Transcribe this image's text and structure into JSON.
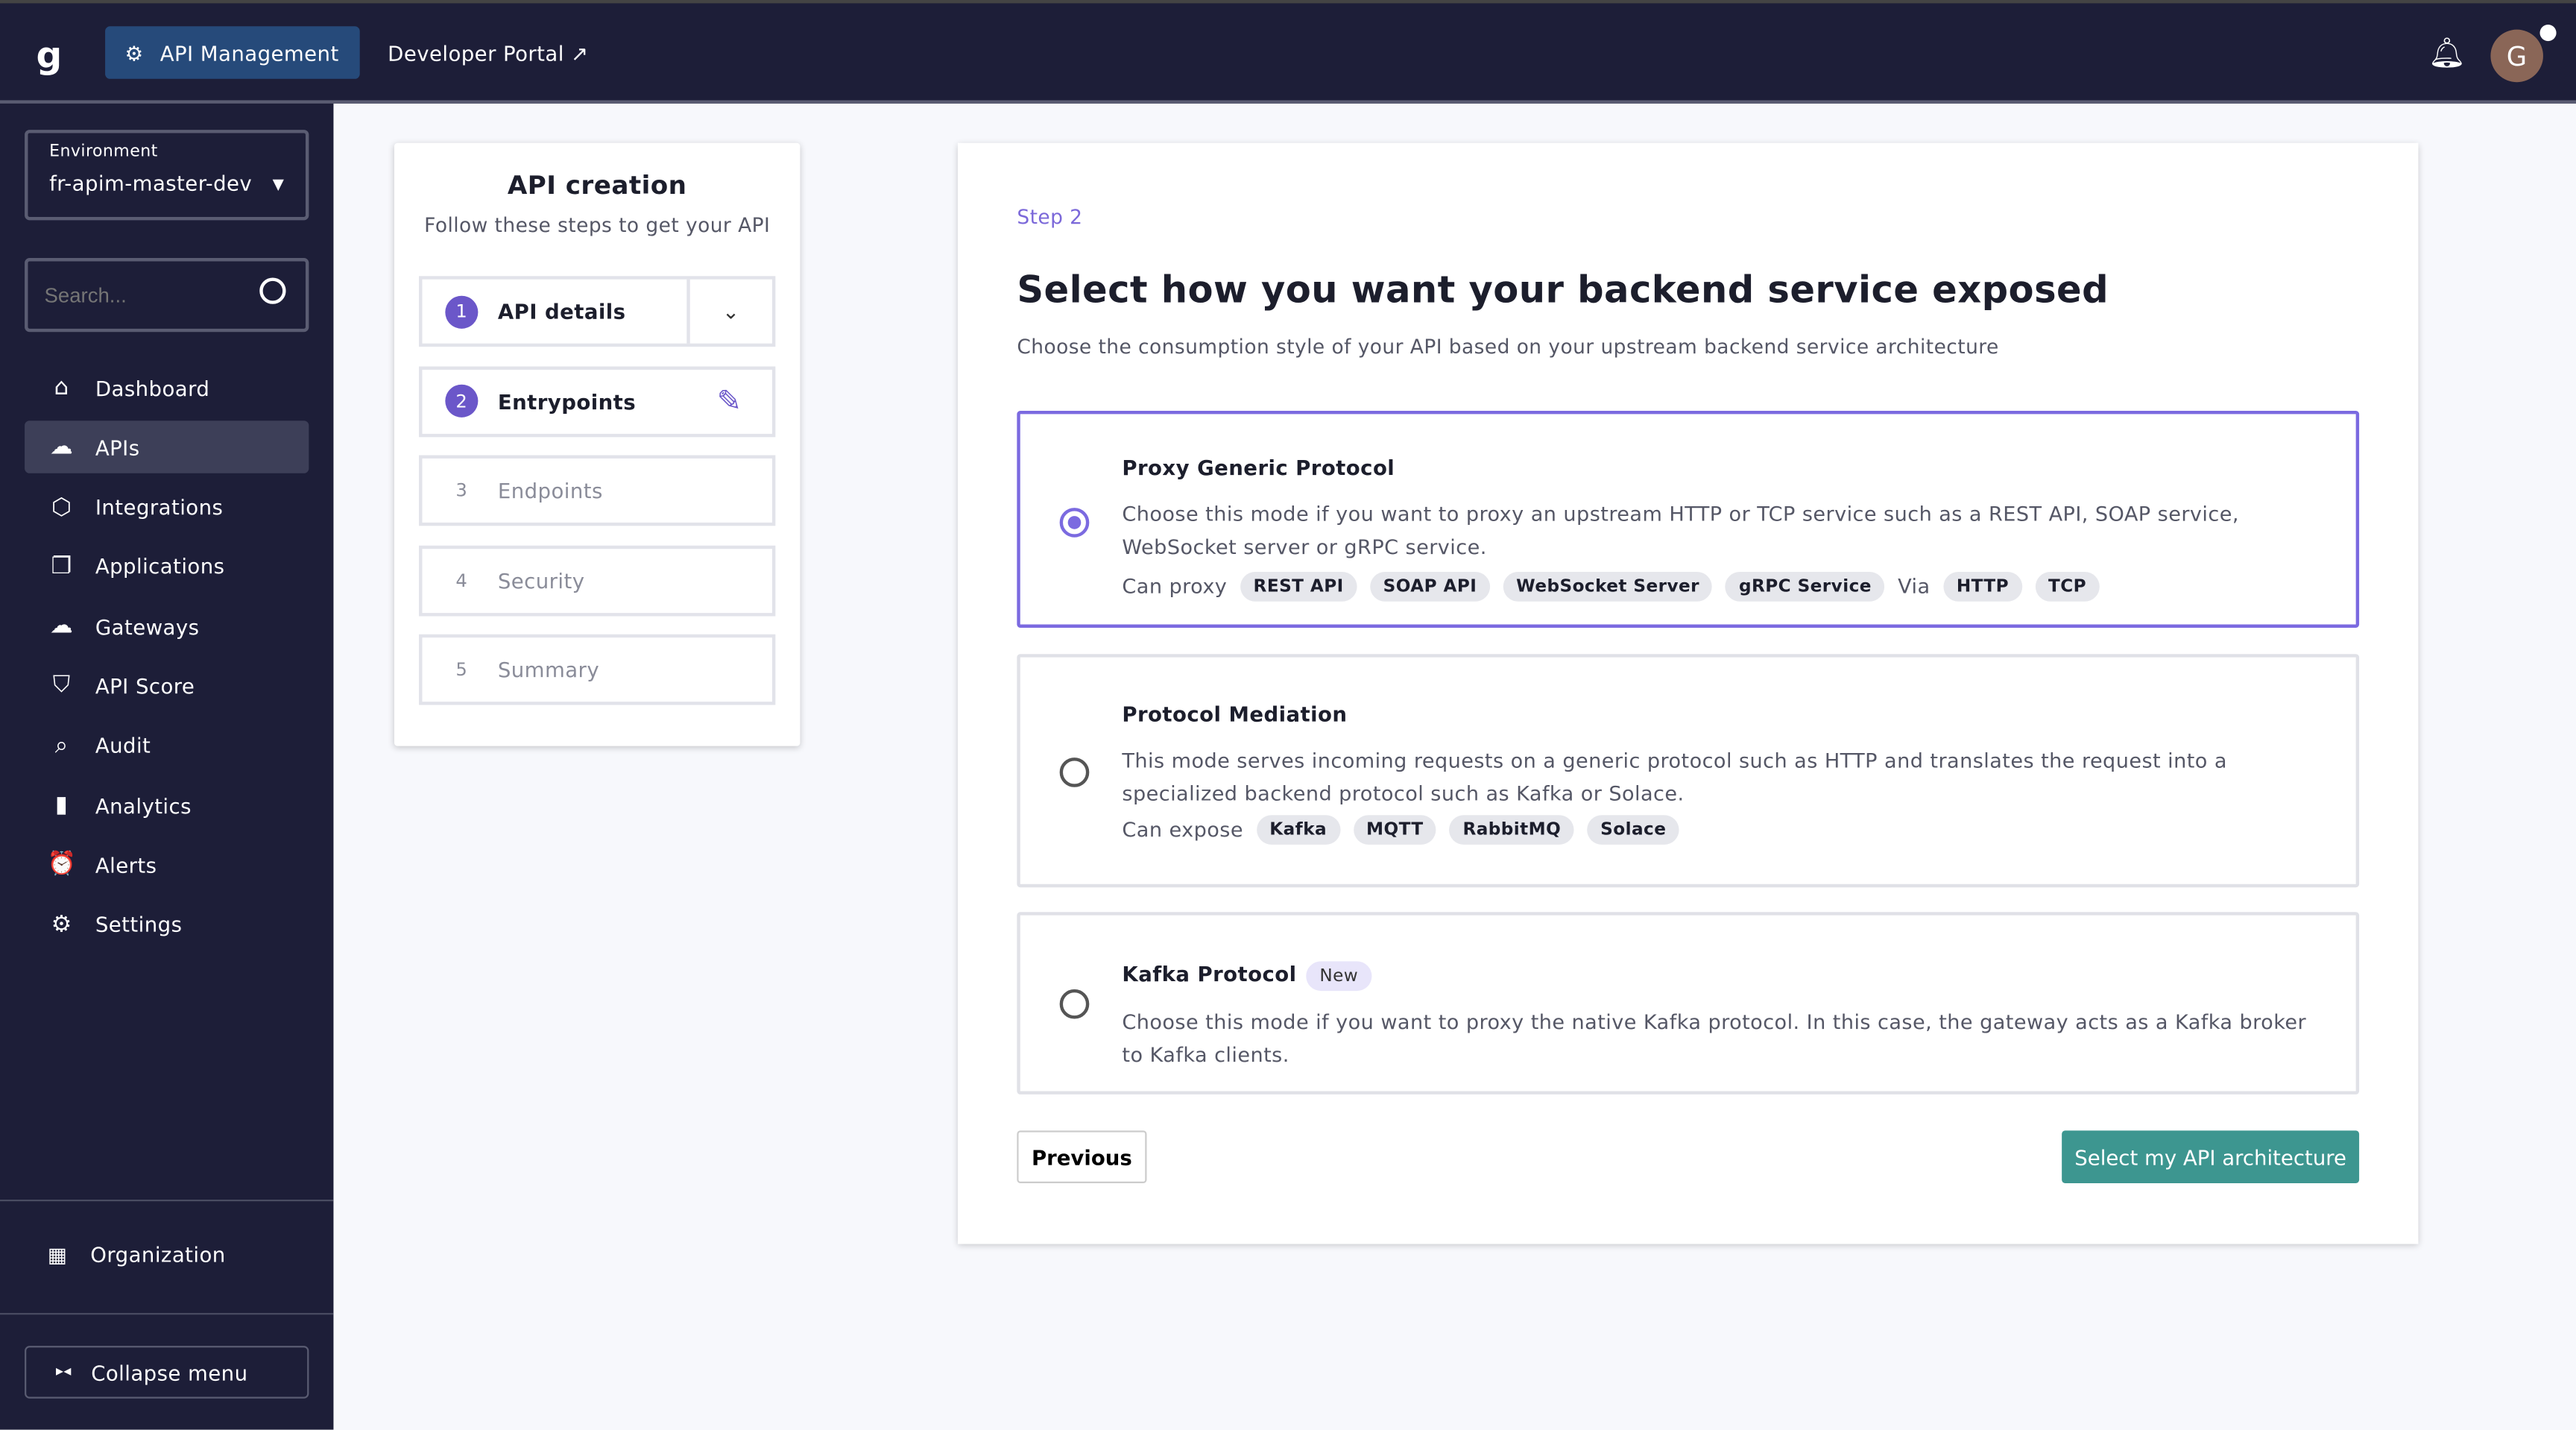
{
  "topbar": {
    "logo": "g",
    "active_nav": "API Management",
    "developer_portal": "Developer Portal",
    "avatar": "G"
  },
  "sidebar": {
    "env_label": "Environment",
    "env_value": "fr-apim-master-dev",
    "search_placeholder": "Search...",
    "items": [
      {
        "label": "Dashboard",
        "icon": "home-icon",
        "glyph": "⌂"
      },
      {
        "label": "APIs",
        "icon": "cloud-api-icon",
        "glyph": "☁",
        "active": true
      },
      {
        "label": "Integrations",
        "icon": "cube-icon",
        "glyph": "⬡"
      },
      {
        "label": "Applications",
        "icon": "windows-icon",
        "glyph": "❐"
      },
      {
        "label": "Gateways",
        "icon": "cloud-icon",
        "glyph": "☁"
      },
      {
        "label": "API Score",
        "icon": "shield-check-icon",
        "glyph": "⛉"
      },
      {
        "label": "Audit",
        "icon": "search-check-icon",
        "glyph": "⌕"
      },
      {
        "label": "Analytics",
        "icon": "bar-chart-icon",
        "glyph": "▮"
      },
      {
        "label": "Alerts",
        "icon": "alarm-icon",
        "glyph": "⏰"
      },
      {
        "label": "Settings",
        "icon": "gear-icon",
        "glyph": "⚙"
      }
    ],
    "organization": "Organization",
    "collapse": "Collapse menu"
  },
  "stepper": {
    "title": "API creation",
    "subtitle": "Follow these steps to get your API",
    "steps": [
      {
        "n": "1",
        "label": "API details"
      },
      {
        "n": "2",
        "label": "Entrypoints"
      },
      {
        "n": "3",
        "label": "Endpoints"
      },
      {
        "n": "4",
        "label": "Security"
      },
      {
        "n": "5",
        "label": "Summary"
      }
    ]
  },
  "main": {
    "step": "Step 2",
    "title": "Select how you want your backend service exposed",
    "subtitle": "Choose the consumption style of your API based on your upstream backend service architecture",
    "options": [
      {
        "title": "Proxy Generic Protocol",
        "desc": "Choose this mode if you want to proxy an upstream HTTP or TCP service such as a REST API, SOAP service, WebSocket server or gRPC service.",
        "prefix": "Can proxy",
        "tags": [
          "REST API",
          "SOAP API",
          "WebSocket Server",
          "gRPC Service"
        ],
        "via": "Via",
        "via_tags": [
          "HTTP",
          "TCP"
        ],
        "selected": true
      },
      {
        "title": "Protocol Mediation",
        "desc": "This mode serves incoming requests on a generic protocol such as HTTP and translates the request into a specialized backend protocol such as Kafka or Solace.",
        "prefix": "Can expose",
        "tags": [
          "Kafka",
          "MQTT",
          "RabbitMQ",
          "Solace"
        ]
      },
      {
        "title": "Kafka Protocol",
        "badge": "New",
        "desc": "Choose this mode if you want to proxy the native Kafka protocol. In this case, the gateway acts as a Kafka broker to Kafka clients."
      }
    ],
    "previous": "Previous",
    "next": "Select my API architecture"
  },
  "colors": {
    "accent": "#7b6ae0",
    "primary_button": "#3d9690",
    "nav_bg": "#1d1e38"
  }
}
